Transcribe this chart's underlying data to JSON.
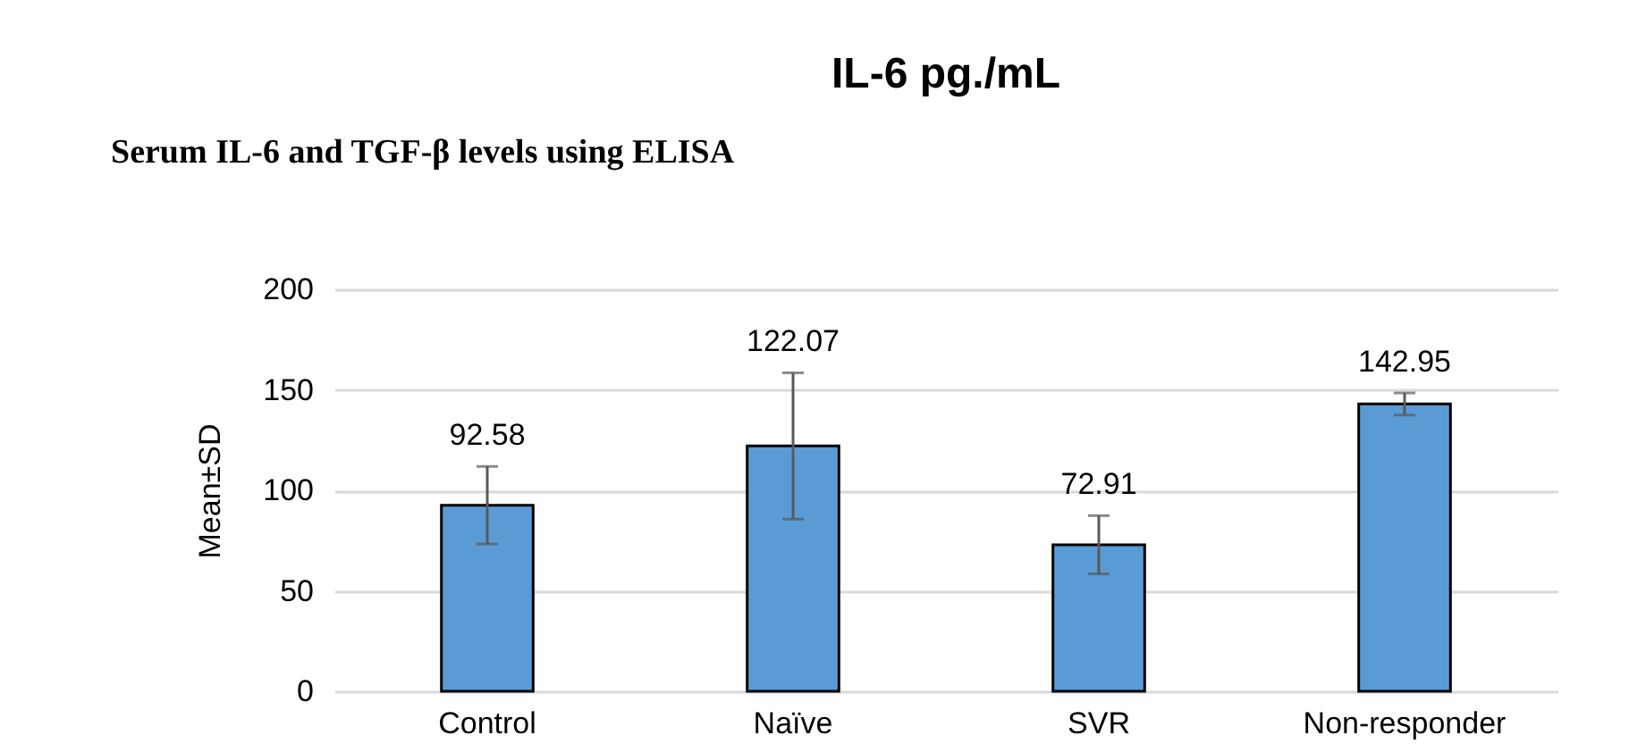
{
  "chart_data": {
    "type": "bar",
    "title": "IL-6 pg./mL",
    "ylabel": "Mean±SD",
    "annotations": [
      "Serum IL-6 and TGF-β levels using ELISA"
    ],
    "categories": [
      "Control",
      "Naïve",
      "SVR",
      "Non-responder"
    ],
    "values": [
      92.58,
      122.07,
      72.91,
      142.95
    ],
    "color": "#5b9bd5",
    "errors": [
      19.3,
      36.4,
      14.5,
      5.5
    ],
    "ylim": [
      0,
      200
    ],
    "yticks": [
      0,
      50,
      100,
      150,
      200
    ],
    "grid": "y",
    "data_labels": true
  }
}
